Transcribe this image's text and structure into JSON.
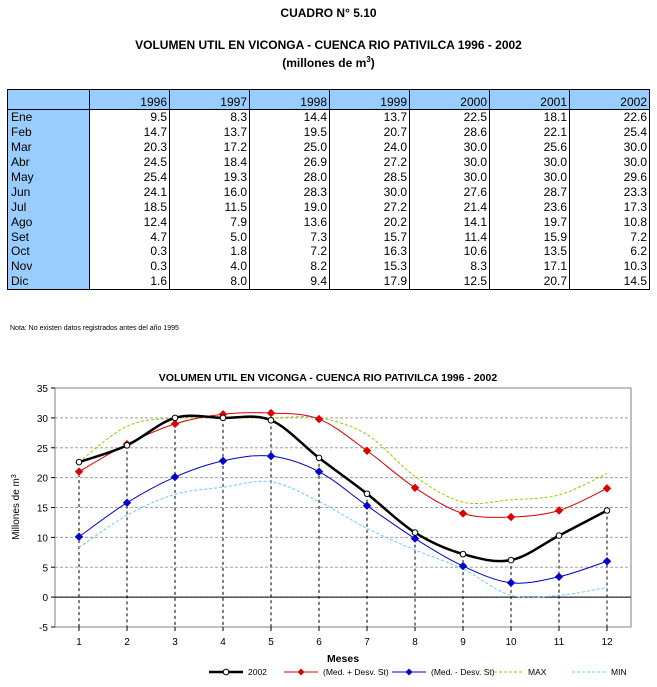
{
  "header": {
    "cuadro": "CUADRO N° 5.10",
    "title": "VOLUMEN UTIL EN  VICONGA - CUENCA RIO PATIVILCA 1996 - 2002",
    "units_pre": "(millones de m",
    "units_sup": "3",
    "units_post": ")"
  },
  "table": {
    "years": [
      "1996",
      "1997",
      "1998",
      "1999",
      "2000",
      "2001",
      "2002"
    ],
    "rows": [
      {
        "month": "Ene",
        "values": [
          "9.5",
          "8.3",
          "14.4",
          "13.7",
          "22.5",
          "18.1",
          "22.6"
        ]
      },
      {
        "month": "Feb",
        "values": [
          "14.7",
          "13.7",
          "19.5",
          "20.7",
          "28.6",
          "22.1",
          "25.4"
        ]
      },
      {
        "month": "Mar",
        "values": [
          "20.3",
          "17.2",
          "25.0",
          "24.0",
          "30.0",
          "25.6",
          "30.0"
        ]
      },
      {
        "month": "Abr",
        "values": [
          "24.5",
          "18.4",
          "26.9",
          "27.2",
          "30.0",
          "30.0",
          "30.0"
        ]
      },
      {
        "month": "May",
        "values": [
          "25.4",
          "19.3",
          "28.0",
          "28.5",
          "30.0",
          "30.0",
          "29.6"
        ]
      },
      {
        "month": "Jun",
        "values": [
          "24.1",
          "16.0",
          "28.3",
          "30.0",
          "27.6",
          "28.7",
          "23.3"
        ]
      },
      {
        "month": "Jul",
        "values": [
          "18.5",
          "11.5",
          "19.0",
          "27.2",
          "21.4",
          "23.6",
          "17.3"
        ]
      },
      {
        "month": "Ago",
        "values": [
          "12.4",
          "7.9",
          "13.6",
          "20.2",
          "14.1",
          "19.7",
          "10.8"
        ]
      },
      {
        "month": "Set",
        "values": [
          "4.7",
          "5.0",
          "7.3",
          "15.7",
          "11.4",
          "15.9",
          "7.2"
        ]
      },
      {
        "month": "Oct",
        "values": [
          "0.3",
          "1.8",
          "7.2",
          "16.3",
          "10.6",
          "13.5",
          "6.2"
        ]
      },
      {
        "month": "Nov",
        "values": [
          "0.3",
          "4.0",
          "8.2",
          "15.3",
          "8.3",
          "17.1",
          "10.3"
        ]
      },
      {
        "month": "Dic",
        "values": [
          "1.6",
          "8.0",
          "9.4",
          "17.9",
          "12.5",
          "20.7",
          "14.5"
        ]
      }
    ]
  },
  "note": "Nota: No existen datos registrados antes del año 1995",
  "chart_data": {
    "type": "line",
    "title": "VOLUMEN UTIL EN VICONGA - CUENCA RIO PATIVILCA 1996 - 2002",
    "xlabel": "Meses",
    "ylabel": "Millones de m",
    "ylabel_sup": "3",
    "x": [
      1,
      2,
      3,
      4,
      5,
      6,
      7,
      8,
      9,
      10,
      11,
      12
    ],
    "ylim": [
      -5,
      35
    ],
    "yticks": [
      -5,
      0,
      5,
      10,
      15,
      20,
      25,
      30,
      35
    ],
    "grid": true,
    "legend_position": "bottom",
    "series": [
      {
        "name": "2002",
        "color": "#000000",
        "style": "solid-thick",
        "marker": "circle-open",
        "values": [
          22.6,
          25.4,
          30.0,
          30.0,
          29.6,
          23.3,
          17.3,
          10.8,
          7.2,
          6.2,
          10.3,
          14.5
        ]
      },
      {
        "name": "(Med. + Desv. St)",
        "color": "#dd0000",
        "style": "solid",
        "marker": "diamond",
        "values": [
          21.0,
          25.6,
          29.0,
          30.6,
          30.8,
          29.8,
          24.5,
          18.3,
          14.0,
          13.4,
          14.5,
          18.2
        ]
      },
      {
        "name": "(Med. - Desv. St)",
        "color": "#0000cc",
        "style": "solid",
        "marker": "diamond",
        "values": [
          10.1,
          15.8,
          20.1,
          22.8,
          23.6,
          21.0,
          15.3,
          9.8,
          5.2,
          2.4,
          3.4,
          6.0
        ]
      },
      {
        "name": "MAX",
        "color": "#99cc00",
        "style": "dashed",
        "marker": "none",
        "values": [
          22.6,
          28.6,
          30.0,
          30.0,
          30.0,
          30.0,
          27.2,
          20.2,
          15.9,
          16.3,
          17.1,
          20.7
        ]
      },
      {
        "name": "MIN",
        "color": "#66ccff",
        "style": "dashed",
        "marker": "none",
        "values": [
          8.3,
          13.7,
          17.2,
          18.4,
          19.3,
          16.0,
          11.5,
          7.9,
          4.7,
          0.3,
          0.3,
          1.6
        ]
      }
    ]
  }
}
